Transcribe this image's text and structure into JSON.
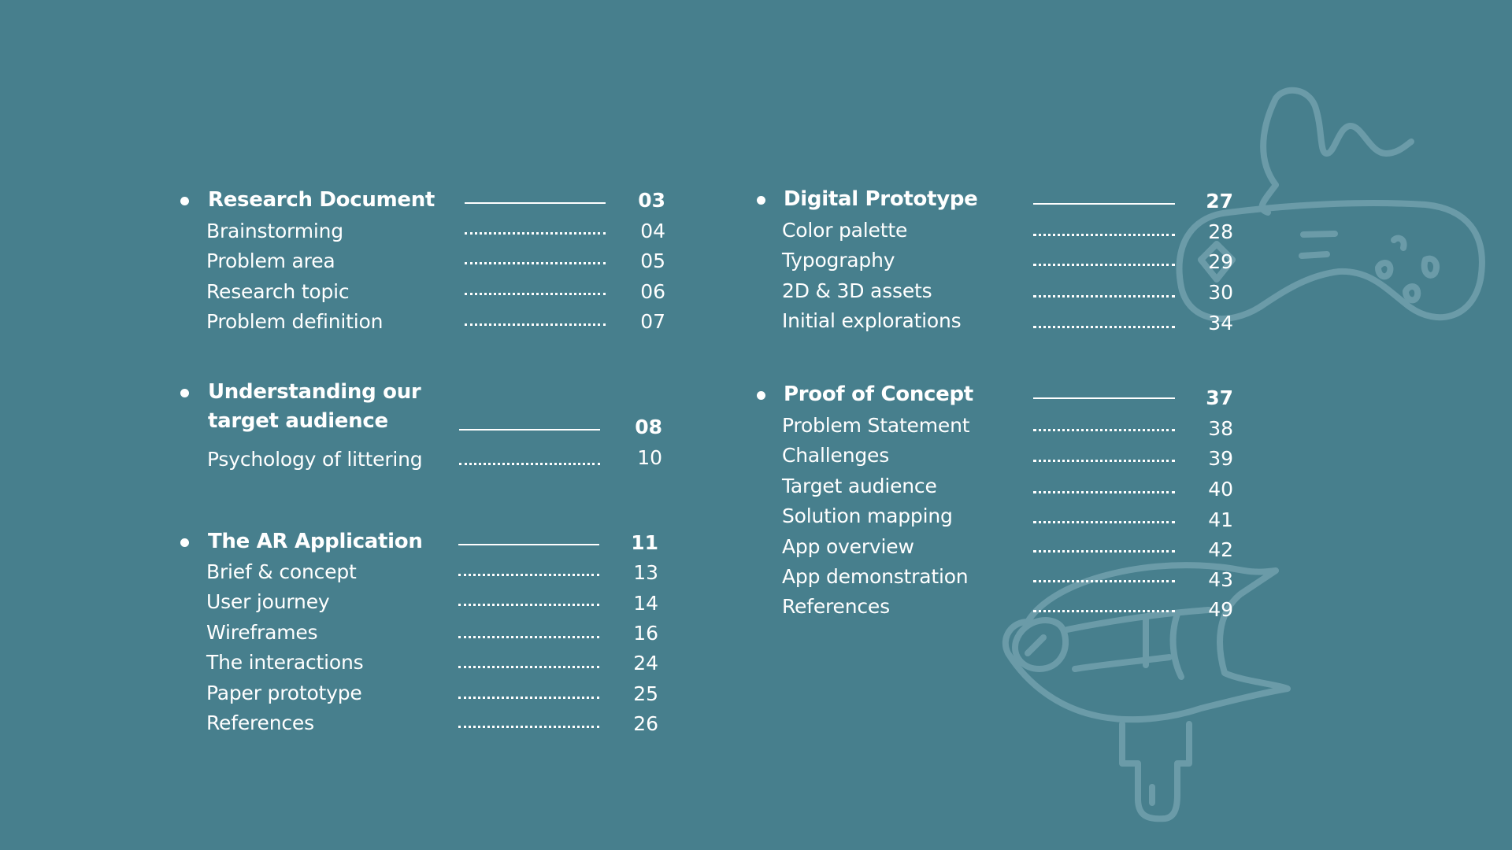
{
  "toc": {
    "left": [
      {
        "title": "Research Document",
        "page": "03",
        "items": [
          {
            "label": "Brainstorming",
            "page": "04"
          },
          {
            "label": "Problem area",
            "page": "05"
          },
          {
            "label": "Research topic",
            "page": "06"
          },
          {
            "label": "Problem definition",
            "page": "07"
          }
        ]
      },
      {
        "title_line1": "Understanding our",
        "title_line2": "target audience",
        "page": "08",
        "items": [
          {
            "label": "Psychology of littering",
            "page": "10"
          }
        ]
      },
      {
        "title": "The AR Application",
        "page": "11",
        "items": [
          {
            "label": "Brief & concept",
            "page": "13"
          },
          {
            "label": "User journey",
            "page": "14"
          },
          {
            "label": "Wireframes",
            "page": "16"
          },
          {
            "label": "The interactions",
            "page": "24"
          },
          {
            "label": "Paper prototype",
            "page": "25"
          },
          {
            "label": "References",
            "page": "26"
          }
        ]
      }
    ],
    "right": [
      {
        "title": "Digital Prototype",
        "page": "27",
        "items": [
          {
            "label": "Color palette",
            "page": "28"
          },
          {
            "label": "Typography",
            "page": "29"
          },
          {
            "label": "2D & 3D assets",
            "page": "30"
          },
          {
            "label": "Initial explorations",
            "page": "34"
          }
        ]
      },
      {
        "title": "Proof of Concept",
        "page": "37",
        "items": [
          {
            "label": "Problem Statement",
            "page": "38"
          },
          {
            "label": "Challenges",
            "page": "39"
          },
          {
            "label": "Target audience",
            "page": "40"
          },
          {
            "label": "Solution mapping",
            "page": "41"
          },
          {
            "label": "App overview",
            "page": "42"
          },
          {
            "label": "App demonstration",
            "page": "43"
          },
          {
            "label": "References",
            "page": "49"
          }
        ]
      }
    ]
  },
  "decorations": [
    "game-controller-icon",
    "vr-headset-icon"
  ],
  "colors": {
    "background": "#477f8d",
    "text": "#ffffff",
    "sketch": "#6f9fac"
  }
}
